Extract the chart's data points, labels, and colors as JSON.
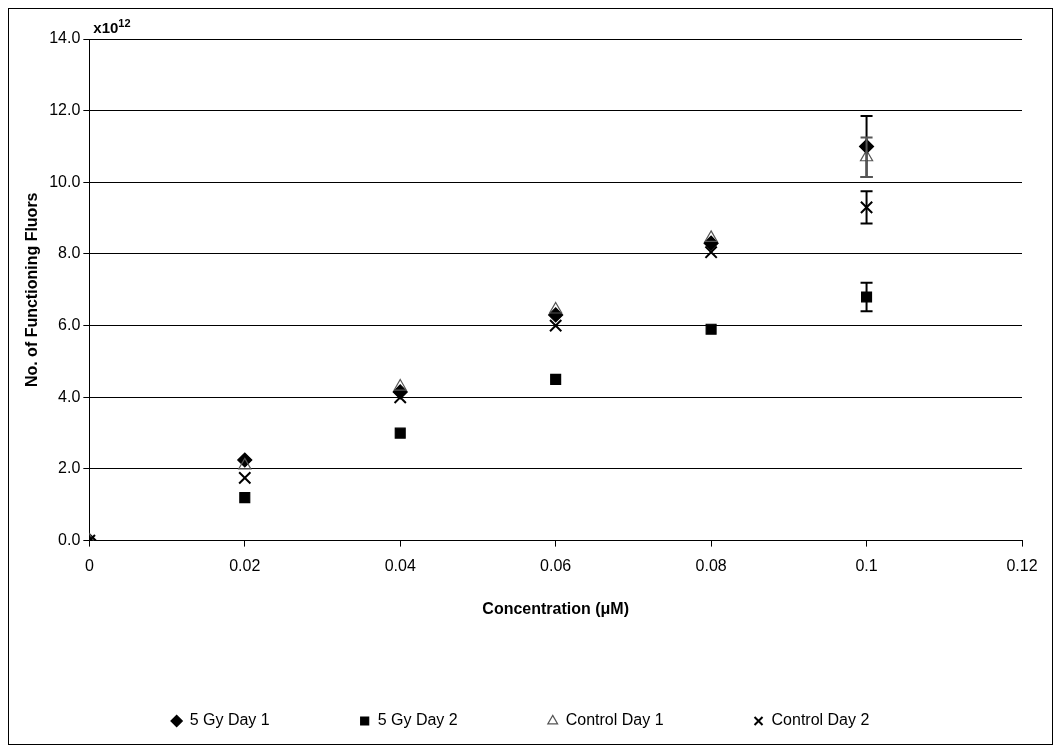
{
  "chart_data": {
    "type": "scatter",
    "xlabel": "Concentration (μM)",
    "ylabel": "No. of Functioning Fluors",
    "annotations": [
      "x10$^{12}$"
    ],
    "x": [
      0,
      0.02,
      0.04,
      0.06,
      0.08,
      0.1
    ],
    "series": [
      {
        "name": "5 Gy Day 1",
        "color": "#000000",
        "marker": "diamond",
        "values": [
          0,
          2.25,
          4.15,
          6.3,
          8.3,
          11.0
        ],
        "errors": [
          null,
          null,
          null,
          null,
          null,
          0.85
        ]
      },
      {
        "name": "5 Gy Day 2",
        "color": "#000000",
        "marker": "square",
        "values": [
          null,
          1.2,
          3.0,
          4.5,
          5.9,
          6.8
        ],
        "errors": [
          null,
          null,
          null,
          null,
          null,
          0.4
        ]
      },
      {
        "name": "Control Day 1",
        "color": "#555555",
        "marker": "triangle",
        "values": [
          0,
          2.1,
          4.3,
          6.45,
          8.45,
          10.7
        ],
        "errors": [
          null,
          null,
          null,
          null,
          null,
          0.55
        ]
      },
      {
        "name": "Control Day 2",
        "color": "#000000",
        "marker": "cross",
        "values": [
          0,
          1.75,
          4.0,
          6.0,
          8.05,
          9.3
        ],
        "errors": [
          null,
          null,
          null,
          null,
          null,
          0.45
        ]
      }
    ],
    "xlim": [
      0,
      0.12
    ],
    "xticks": [
      0,
      0.02,
      0.04,
      0.06,
      0.08,
      0.1,
      0.12
    ],
    "ylim": [
      0,
      14
    ],
    "yticks": [
      {
        "value": 0,
        "label": "0.0"
      },
      {
        "value": 2,
        "label": "2.0"
      },
      {
        "value": 4,
        "label": "4.0"
      },
      {
        "value": 6,
        "label": "6.0"
      },
      {
        "value": 8,
        "label": "8.0"
      },
      {
        "value": 10,
        "label": "10.0"
      },
      {
        "value": 12,
        "label": "12.0"
      },
      {
        "value": 14,
        "label": "14.0"
      }
    ],
    "grid": "y",
    "legend": "bottom"
  }
}
